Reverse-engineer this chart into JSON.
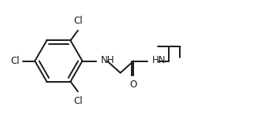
{
  "background_color": "#ffffff",
  "line_color": "#1a1a1a",
  "text_color": "#1a1a1a",
  "line_width": 1.4,
  "font_size": 8.5,
  "figsize": [
    3.36,
    1.55
  ],
  "dpi": 100,
  "xlim": [
    0.0,
    10.0
  ],
  "ylim": [
    0.5,
    5.0
  ]
}
